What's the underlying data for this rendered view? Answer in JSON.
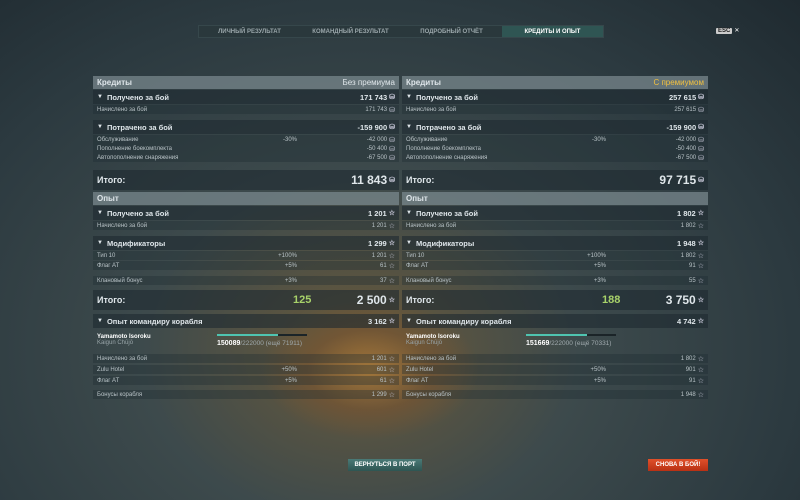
{
  "tabs": [
    {
      "label": "ЛИЧНЫЙ РЕЗУЛЬТАТ",
      "active": false
    },
    {
      "label": "КОМАНДНЫЙ РЕЗУЛЬТАТ",
      "active": false
    },
    {
      "label": "ПОДРОБНЫЙ ОТЧЁТ",
      "active": false
    },
    {
      "label": "КРЕДИТЫ И ОПЫТ",
      "active": true
    }
  ],
  "esc": {
    "key": "ESC",
    "close": "✕"
  },
  "colors": {
    "premium": "#f0c040",
    "bonus_xp": "#a8d26a",
    "accent": "#4fc4b0",
    "battle_button": "#d04020"
  },
  "columns": [
    {
      "credits": {
        "title": "Кредиты",
        "mode": "Без премиума",
        "premium": false,
        "earned": {
          "label": "Получено за бой",
          "value": "171 743"
        },
        "earned_items": [
          {
            "label": "Начислено за бой",
            "pct": "",
            "value": "171 743"
          }
        ],
        "spent": {
          "label": "Потрачено за бой",
          "value": "-159 900"
        },
        "spent_items": [
          {
            "label": "Обслуживание",
            "pct": "-30%",
            "value": "-42 000"
          },
          {
            "label": "Пополнение боекомплекта",
            "pct": "",
            "value": "-50 400"
          },
          {
            "label": "Автопополнение снаряжения",
            "pct": "",
            "value": "-67 500"
          }
        ],
        "total": {
          "label": "Итого:",
          "value": "11 843"
        }
      },
      "xp": {
        "title": "Опыт",
        "earned": {
          "label": "Получено за бой",
          "value": "1 201"
        },
        "earned_items": [
          {
            "label": "Начислено за бой",
            "pct": "",
            "value": "1 201"
          }
        ],
        "modifiers": {
          "label": "Модификаторы",
          "value": "1 299"
        },
        "modifier_items": [
          {
            "label": "Тип 10",
            "pct": "+100%",
            "value": "1 201"
          },
          {
            "label": "Флаг АТ",
            "pct": "+5%",
            "value": "61"
          },
          {
            "label": "Клановый бонус",
            "pct": "+3%",
            "value": "37"
          }
        ],
        "total": {
          "label": "Итого:",
          "bonus": "125",
          "value": "2 500"
        },
        "commander": {
          "label": "Опыт командиру корабля",
          "value": "3 162",
          "name": "Yamamoto Isoroku",
          "subtitle": "Kaigun Chūjō",
          "current": "150089",
          "max": "/222000",
          "remaining": "(ещё 71911)",
          "progress": 0.676,
          "items": [
            {
              "label": "Начислено за бой",
              "pct": "",
              "value": "1 201"
            },
            {
              "label": "Zulu Hotel",
              "pct": "+50%",
              "value": "601"
            },
            {
              "label": "Флаг АТ",
              "pct": "+5%",
              "value": "61"
            },
            {
              "label": "Бонусы корабля",
              "pct": "",
              "value": "1 299"
            }
          ]
        }
      }
    },
    {
      "credits": {
        "title": "Кредиты",
        "mode": "С премиумом",
        "premium": true,
        "earned": {
          "label": "Получено за бой",
          "value": "257 615"
        },
        "earned_items": [
          {
            "label": "Начислено за бой",
            "pct": "",
            "value": "257 615"
          }
        ],
        "spent": {
          "label": "Потрачено за бой",
          "value": "-159 900"
        },
        "spent_items": [
          {
            "label": "Обслуживание",
            "pct": "-30%",
            "value": "-42 000"
          },
          {
            "label": "Пополнение боекомплекта",
            "pct": "",
            "value": "-50 400"
          },
          {
            "label": "Автопополнение снаряжения",
            "pct": "",
            "value": "-67 500"
          }
        ],
        "total": {
          "label": "Итого:",
          "value": "97 715"
        }
      },
      "xp": {
        "title": "Опыт",
        "earned": {
          "label": "Получено за бой",
          "value": "1 802"
        },
        "earned_items": [
          {
            "label": "Начислено за бой",
            "pct": "",
            "value": "1 802"
          }
        ],
        "modifiers": {
          "label": "Модификаторы",
          "value": "1 948"
        },
        "modifier_items": [
          {
            "label": "Тип 10",
            "pct": "+100%",
            "value": "1 802"
          },
          {
            "label": "Флаг АТ",
            "pct": "+5%",
            "value": "91"
          },
          {
            "label": "Клановый бонус",
            "pct": "+3%",
            "value": "55"
          }
        ],
        "total": {
          "label": "Итого:",
          "bonus": "188",
          "value": "3 750"
        },
        "commander": {
          "label": "Опыт командиру корабля",
          "value": "4 742",
          "name": "Yamamoto Isoroku",
          "subtitle": "Kaigun Chūjō",
          "current": "151669",
          "max": "/222000",
          "remaining": "(ещё 70331)",
          "progress": 0.683,
          "items": [
            {
              "label": "Начислено за бой",
              "pct": "",
              "value": "1 802"
            },
            {
              "label": "Zulu Hotel",
              "pct": "+50%",
              "value": "901"
            },
            {
              "label": "Флаг АТ",
              "pct": "+5%",
              "value": "91"
            },
            {
              "label": "Бонусы корабля",
              "pct": "",
              "value": "1 948"
            }
          ]
        }
      }
    }
  ],
  "icons": {
    "credits": "⛁",
    "xp": "☆",
    "collapse": "▼"
  },
  "buttons": {
    "port": "ВЕРНУТЬСЯ В ПОРТ",
    "battle": "СНОВА В БОЙ!"
  }
}
